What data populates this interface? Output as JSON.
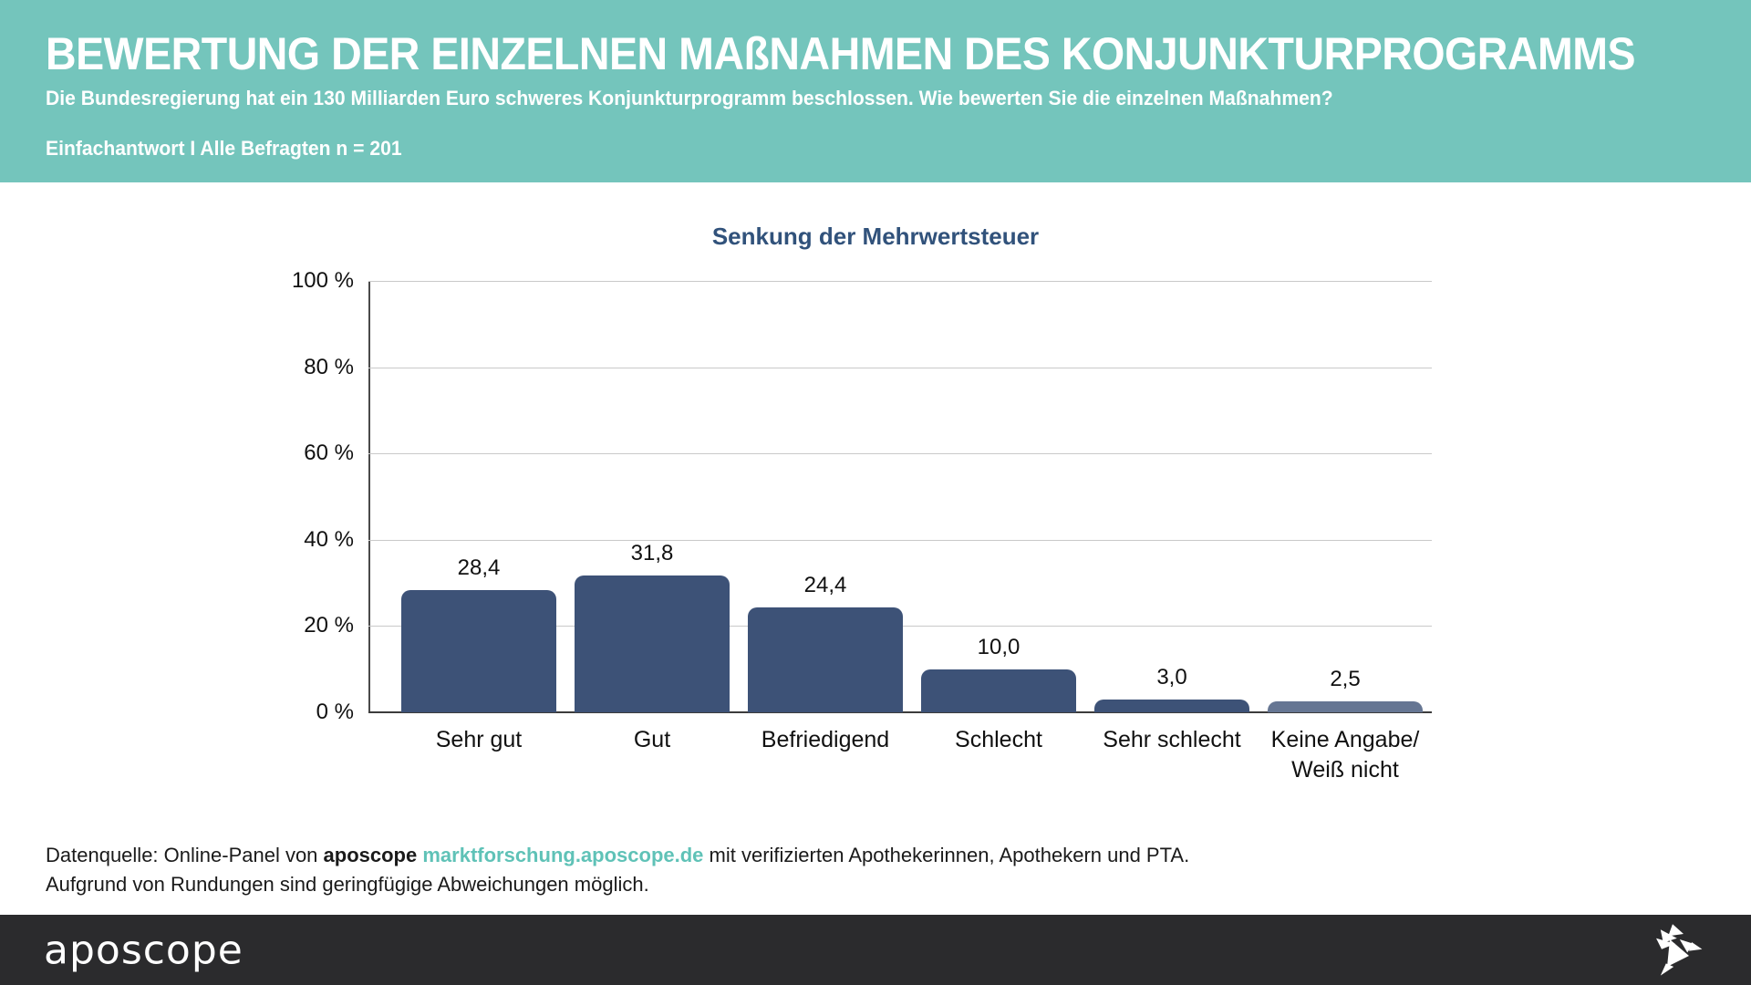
{
  "header": {
    "title": "BEWERTUNG DER EINZELNEN MAßNAHMEN DES KONJUNKTURPROGRAMMS",
    "subtitle": "Die Bundesregierung hat ein 130 Milliarden Euro schweres Konjunkturprogramm beschlossen. Wie bewerten Sie die einzelnen Maßnahmen?",
    "filter_note": "Einfachantwort I Alle Befragten n = 201"
  },
  "chart_data": {
    "type": "bar",
    "title": "Senkung der Mehrwertsteuer",
    "categories": [
      "Sehr gut",
      "Gut",
      "Befriedigend",
      "Schlecht",
      "Sehr schlecht",
      "Keine Angabe/\nWeiß nicht"
    ],
    "values": [
      28.4,
      31.8,
      24.4,
      10.0,
      3.0,
      2.5
    ],
    "value_labels": [
      "28,4",
      "31,8",
      "24,4",
      "10,0",
      "3,0",
      "2,5"
    ],
    "bar_colors": [
      "#3d5277",
      "#3d5277",
      "#3d5277",
      "#3d5277",
      "#3d5277",
      "#667693"
    ],
    "xlabel": "",
    "ylabel": "",
    "ylim": [
      0,
      100
    ],
    "yticks": [
      0,
      20,
      40,
      60,
      80,
      100
    ],
    "ytick_labels": [
      "0 %",
      "20 %",
      "40 %",
      "60 %",
      "80 %",
      "100 %"
    ],
    "grid": true,
    "legend_position": "none"
  },
  "footnote": {
    "line1_prefix": "Datenquelle: Online-Panel von ",
    "brand": "aposcope ",
    "link": "marktforschung.aposcope.de",
    "line1_suffix": " mit verifizierten Apothekerinnen, Apothekern und PTA.",
    "line2": "Aufgrund von Rundungen sind geringfügige Abweichungen möglich."
  },
  "footer": {
    "logo": "aposcope"
  },
  "colors": {
    "header_bg": "#74c5bc",
    "bar_primary": "#3d5277",
    "bar_muted": "#667693",
    "chart_title": "#31527b",
    "gridline": "#c9c9c9",
    "footer_bg": "#2b2b2d",
    "link": "#5fc2b7"
  }
}
